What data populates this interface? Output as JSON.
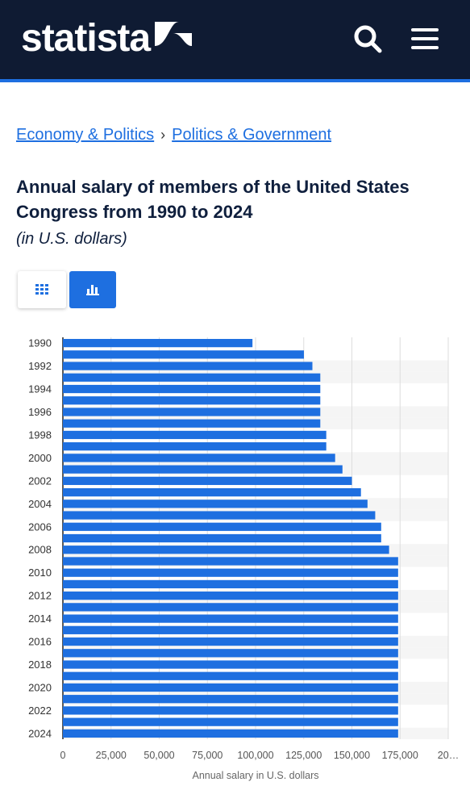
{
  "header": {
    "logo_text": "statista",
    "search_icon": "search-icon",
    "menu_icon": "hamburger-menu-icon",
    "bg_color": "#0f1b33",
    "accent_color": "#1e6fe0"
  },
  "breadcrumb": {
    "items": [
      "Economy & Politics",
      "Politics & Government"
    ],
    "separator": "›"
  },
  "title": "Annual salary of members of the United States Congress from 1990 to 2024",
  "subtitle": "(in U.S. dollars)",
  "view_tabs": {
    "table_icon": "table-grid-icon",
    "chart_icon": "bar-chart-icon",
    "active": "chart"
  },
  "chart_data": {
    "type": "bar",
    "orientation": "horizontal",
    "categories": [
      "1990",
      "1991",
      "1992",
      "1993",
      "1994",
      "1995",
      "1996",
      "1997",
      "1998",
      "1999",
      "2000",
      "2001",
      "2002",
      "2003",
      "2004",
      "2005",
      "2006",
      "2007",
      "2008",
      "2009",
      "2010",
      "2011",
      "2012",
      "2013",
      "2014",
      "2015",
      "2016",
      "2017",
      "2018",
      "2019",
      "2020",
      "2021",
      "2022",
      "2023",
      "2024"
    ],
    "series": [
      {
        "values": [
          98400,
          125100,
          129500,
          133600,
          133600,
          133600,
          133600,
          133600,
          136700,
          136700,
          141300,
          145100,
          150000,
          154700,
          158100,
          162100,
          165200,
          165200,
          169300,
          174000,
          174000,
          174000,
          174000,
          174000,
          174000,
          174000,
          174000,
          174000,
          174000,
          174000,
          174000,
          174000,
          174000,
          174000,
          174000
        ],
        "color": "#1e6fe0"
      }
    ],
    "x_ticks": [
      "0",
      "25,000",
      "50,000",
      "75,000",
      "100,000",
      "125,000",
      "150,000",
      "175,000",
      "20…"
    ],
    "y_tick_labels": [
      "1990",
      "1992",
      "1994",
      "1996",
      "1998",
      "2000",
      "2002",
      "2004",
      "2006",
      "2008",
      "2010",
      "2012",
      "2014",
      "2016",
      "2018",
      "2020",
      "2022",
      "2024"
    ],
    "xlabel": "Annual salary in U.S. dollars",
    "ylabel": "",
    "xlim": [
      0,
      200000
    ],
    "grid": true
  }
}
